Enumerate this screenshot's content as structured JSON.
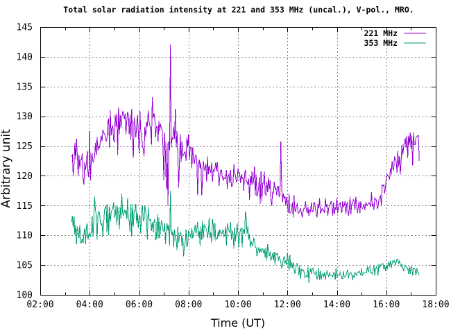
{
  "chart_data": {
    "type": "line",
    "title": "Total solar radiation intensity at 221 and 353 MHz (uncal.), V-pol., MRO.",
    "xlabel": "Time (UT)",
    "ylabel": "Arbitrary unit",
    "xlim_hours": [
      2,
      18
    ],
    "ylim": [
      100,
      145
    ],
    "x_major_ticks": [
      {
        "h": 2,
        "label": "02:00"
      },
      {
        "h": 4,
        "label": "04:00"
      },
      {
        "h": 6,
        "label": "06:00"
      },
      {
        "h": 8,
        "label": "08:00"
      },
      {
        "h": 10,
        "label": "10:00"
      },
      {
        "h": 12,
        "label": "12:00"
      },
      {
        "h": 14,
        "label": "14:00"
      },
      {
        "h": 16,
        "label": "16:00"
      },
      {
        "h": 18,
        "label": "18:00"
      }
    ],
    "x_minor_ticks_hours": [
      3,
      5,
      7,
      9,
      11,
      13,
      15,
      17
    ],
    "y_major_ticks": [
      {
        "v": 100,
        "label": "100"
      },
      {
        "v": 105,
        "label": "105"
      },
      {
        "v": 110,
        "label": "110"
      },
      {
        "v": 115,
        "label": "115"
      },
      {
        "v": 120,
        "label": "120"
      },
      {
        "v": 125,
        "label": "125"
      },
      {
        "v": 130,
        "label": "130"
      },
      {
        "v": 135,
        "label": "135"
      },
      {
        "v": 140,
        "label": "140"
      },
      {
        "v": 145,
        "label": "145"
      }
    ],
    "grid": true,
    "grid_color": "#808080",
    "border_color": "#000000",
    "background_color": "#ffffff",
    "legend_position": "top-right-inside",
    "legend": [
      {
        "label": "221 MHz",
        "color": "#9400D3"
      },
      {
        "label": "353 MHz",
        "color": "#009E73"
      }
    ],
    "series": [
      {
        "name": "221 MHz",
        "color": "#9400D3",
        "start_min": 196,
        "step_min": 2,
        "values": [
          123.25,
          123.5,
          120.0,
          121.75,
          125.5,
          122.75,
          126.25,
          123.5,
          120.0,
          123.5,
          121.25,
          122.75,
          122.75,
          123.75,
          119.5,
          118.5,
          122.25,
          121.0,
          122.0,
          124.25,
          120.25,
          119.75,
          127.5,
          119.25,
          123.0,
          123.75,
          122.25,
          122.75,
          123.25,
          125.5,
          123.5,
          126.5,
          124.25,
          125.0,
          124.75,
          126.0,
          126.75,
          125.75,
          127.75,
          127.25,
          127.0,
          126.75,
          125.75,
          126.25,
          129.25,
          129.5,
          124.75,
          131.0,
          126.75,
          128.0,
          128.5,
          126.0,
          125.75,
          130.25,
          128.25,
          130.5,
          123.5,
          131.5,
          127.0,
          130.25,
          128.0,
          129.75,
          130.75,
          130.75,
          129.5,
          130.5,
          127.0,
          129.25,
          130.75,
          130.25,
          127.0,
          130.25,
          126.0,
          131.25,
          126.25,
          123.0,
          129.75,
          128.75,
          126.5,
          128.25,
          130.25,
          127.5,
          123.75,
          131.0,
          127.5,
          127.0,
          125.0,
          124.5,
          123.25,
          128.25,
          126.5,
          129.0,
          128.25,
          131.0,
          129.25,
          128.5,
          127.75,
          125.25,
          133.25,
          129.75,
          130.5,
          129.75,
          126.5,
          128.25,
          128.25,
          125.75,
          129.25,
          127.5,
          128.75,
          128.0,
          127.75,
          124.75,
          119.25,
          127.25,
          123.5,
          117.75,
          125.5,
          115.0,
          125.75,
          124.25,
          142.0,
          124.75,
          126.5,
          126.0,
          128.25,
          126.25,
          131.25,
          124.75,
          127.5,
          123.75,
          118.0,
          122.5,
          127.0,
          122.25,
          125.75,
          123.25,
          123.5,
          124.0,
          124.0,
          122.5,
          126.5,
          124.75,
          127.0,
          122.75,
          124.75,
          124.75,
          121.25,
          124.75,
          122.75,
          122.0,
          123.25,
          123.5,
          122.75,
          116.75,
          121.75,
          122.75,
          121.25,
          122.25,
          116.75,
          119.75,
          122.5,
          121.0,
          121.0,
          122.0,
          119.0,
          123.25,
          120.25,
          121.75,
          121.0,
          120.5,
          122.25,
          119.0,
          121.0,
          120.75,
          121.25,
          122.25,
          120.75,
          122.25,
          120.25,
          118.25,
          120.0,
          121.0,
          121.0,
          119.75,
          119.25,
          119.75,
          119.5,
          119.5,
          121.0,
          117.75,
          120.0,
          120.25,
          118.75,
          121.0,
          118.25,
          118.25,
          118.75,
          122.0,
          120.5,
          120.0,
          119.0,
          119.25,
          121.25,
          120.5,
          120.5,
          118.75,
          120.25,
          119.5,
          119.75,
          117.5,
          120.25,
          121.0,
          119.0,
          119.0,
          118.5,
          119.5,
          116.0,
          120.0,
          118.5,
          120.75,
          118.5,
          119.25,
          121.5,
          116.75,
          120.25,
          116.5,
          117.0,
          118.0,
          119.75,
          115.25,
          120.75,
          115.75,
          118.75,
          118.75,
          120.75,
          117.0,
          116.75,
          119.0,
          117.25,
          119.75,
          117.75,
          119.25,
          115.75,
          115.0,
          117.25,
          117.0,
          119.0,
          117.75,
          118.0,
          116.75,
          118.25,
          118.25,
          116.5,
          116.75,
          125.75,
          118.0,
          115.5,
          117.0,
          116.25,
          116.5,
          115.0,
          116.5,
          115.25,
          113.75,
          117.0,
          113.75,
          113.75,
          114.25,
          115.5,
          113.0,
          116.75,
          114.25,
          114.0,
          115.0,
          115.25,
          113.75,
          113.75,
          114.25,
          114.5,
          113.75,
          113.0,
          114.0,
          114.5,
          114.5,
          115.75,
          114.25,
          113.75,
          114.75,
          113.25,
          114.25,
          114.0,
          115.5,
          114.0,
          114.0,
          115.5,
          115.5,
          114.5,
          113.5,
          113.0,
          115.25,
          114.5,
          116.25,
          113.75,
          114.0,
          114.5,
          114.25,
          114.25,
          113.75,
          116.25,
          114.75,
          115.25,
          113.25,
          114.5,
          115.0,
          115.25,
          115.75,
          115.0,
          113.25,
          115.5,
          113.5,
          114.75,
          114.25,
          116.25,
          113.75,
          114.75,
          115.25,
          115.5,
          114.5,
          113.75,
          115.75,
          114.75,
          115.0,
          115.75,
          113.5,
          115.25,
          115.5,
          113.25,
          114.25,
          116.5,
          113.5,
          115.25,
          115.25,
          116.0,
          115.75,
          114.25,
          116.5,
          115.25,
          113.75,
          114.75,
          115.75,
          113.75,
          115.75,
          114.75,
          114.5,
          114.75,
          115.25,
          114.25,
          115.5,
          115.25,
          115.0,
          115.25,
          115.5,
          115.25,
          114.75,
          117.25,
          115.0,
          115.25,
          114.25,
          116.25,
          116.0,
          116.0,
          114.5,
          114.75,
          116.0,
          116.25,
          116.75,
          115.0,
          118.5,
          118.25,
          118.5,
          117.0,
          118.0,
          120.0,
          120.25,
          120.0,
          119.75,
          119.5,
          121.25,
          120.25,
          122.5,
          121.25,
          121.0,
          123.25,
          122.75,
          122.5,
          120.5,
          124.25,
          121.5,
          123.25,
          120.25,
          122.5,
          125.25,
          123.5,
          124.75,
          126.0,
          126.25,
          124.75,
          126.75,
          123.0,
          126.75,
          125.25,
          127.25,
          124.5,
          126.75,
          121.75,
          127.25,
          125.25,
          125.25,
          126.5,
          126.5,
          126.75,
          126.75,
          122.5
        ]
      },
      {
        "name": "353 MHz",
        "color": "#009E73",
        "start_min": 196,
        "step_min": 2,
        "values": [
          112.25,
          113.25,
          111.25,
          113.25,
          110.0,
          111.75,
          108.5,
          111.5,
          110.5,
          109.5,
          111.75,
          108.75,
          108.75,
          109.5,
          108.75,
          110.25,
          111.25,
          108.5,
          111.5,
          112.0,
          109.25,
          110.25,
          110.25,
          109.75,
          110.75,
          113.25,
          109.75,
          112.5,
          116.5,
          114.25,
          113.5,
          109.25,
          113.25,
          114.0,
          113.75,
          112.0,
          111.75,
          112.0,
          109.75,
          112.0,
          114.25,
          114.75,
          115.0,
          110.5,
          115.25,
          110.0,
          114.75,
          112.25,
          113.75,
          114.25,
          114.5,
          115.5,
          113.0,
          113.25,
          115.0,
          111.75,
          114.75,
          113.5,
          111.0,
          114.75,
          112.75,
          117.0,
          113.75,
          113.25,
          114.25,
          113.75,
          114.25,
          112.75,
          116.25,
          112.5,
          112.5,
          110.5,
          115.25,
          109.75,
          115.25,
          111.5,
          114.0,
          114.25,
          115.25,
          112.0,
          113.75,
          111.25,
          113.25,
          113.25,
          110.25,
          114.25,
          115.0,
          112.5,
          112.5,
          115.0,
          114.0,
          112.25,
          109.25,
          114.75,
          112.75,
          112.5,
          112.75,
          110.75,
          112.25,
          110.5,
          112.25,
          112.75,
          109.25,
          109.5,
          113.5,
          109.5,
          113.0,
          109.5,
          111.0,
          112.5,
          112.0,
          110.75,
          110.75,
          112.0,
          108.5,
          111.5,
          112.0,
          110.75,
          111.75,
          108.25,
          117.5,
          110.75,
          110.0,
          110.75,
          108.0,
          111.0,
          109.5,
          109.25,
          107.5,
          111.5,
          108.75,
          109.75,
          110.5,
          110.25,
          108.25,
          109.75,
          106.5,
          108.25,
          108.75,
          111.0,
          108.0,
          108.5,
          110.75,
          110.5,
          110.25,
          109.5,
          111.25,
          109.5,
          110.25,
          110.75,
          111.75,
          110.25,
          111.0,
          112.25,
          109.75,
          110.75,
          108.25,
          111.5,
          109.25,
          112.5,
          109.5,
          111.75,
          111.5,
          111.25,
          111.0,
          109.5,
          110.5,
          113.0,
          109.5,
          110.5,
          108.75,
          112.75,
          111.75,
          109.25,
          112.0,
          109.25,
          109.5,
          109.5,
          110.75,
          109.75,
          111.0,
          110.5,
          110.25,
          110.5,
          111.0,
          109.75,
          110.0,
          111.5,
          108.25,
          112.0,
          111.25,
          110.75,
          110.5,
          112.25,
          109.25,
          110.75,
          110.25,
          107.75,
          111.25,
          109.0,
          110.5,
          112.0,
          110.25,
          108.0,
          110.25,
          111.0,
          111.25,
          108.0,
          111.0,
          110.75,
          110.25,
          114.0,
          113.0,
          110.25,
          111.5,
          109.25,
          110.25,
          108.0,
          109.0,
          108.5,
          108.25,
          109.5,
          109.25,
          108.0,
          108.0,
          106.5,
          107.25,
          108.0,
          107.0,
          107.75,
          107.25,
          107.75,
          107.75,
          107.0,
          107.75,
          106.25,
          108.0,
          105.75,
          108.5,
          107.25,
          106.5,
          107.25,
          105.75,
          106.25,
          107.0,
          105.75,
          107.25,
          105.0,
          107.0,
          106.75,
          107.0,
          105.75,
          106.5,
          106.0,
          105.5,
          104.5,
          104.75,
          106.0,
          106.5,
          105.25,
          105.75,
          105.0,
          107.0,
          105.75,
          104.0,
          106.75,
          104.5,
          105.5,
          104.5,
          105.5,
          104.5,
          103.5,
          104.25,
          105.25,
          105.25,
          104.5,
          103.25,
          105.0,
          102.75,
          104.25,
          104.0,
          104.25,
          104.0,
          103.0,
          103.0,
          103.25,
          103.0,
          104.75,
          102.0,
          103.5,
          104.5,
          103.5,
          104.25,
          104.5,
          103.75,
          103.5,
          103.5,
          104.0,
          102.5,
          103.25,
          104.5,
          102.5,
          104.0,
          102.5,
          103.5,
          103.5,
          103.0,
          103.75,
          102.5,
          103.5,
          104.0,
          103.5,
          103.0,
          103.75,
          103.25,
          103.25,
          103.25,
          103.0,
          103.75,
          103.75,
          102.5,
          104.5,
          103.0,
          103.25,
          103.25,
          103.25,
          103.75,
          103.25,
          102.75,
          102.75,
          104.0,
          103.0,
          103.0,
          103.25,
          103.75,
          104.25,
          102.75,
          103.5,
          103.75,
          103.75,
          103.5,
          102.5,
          103.25,
          103.0,
          103.75,
          103.5,
          103.25,
          103.75,
          103.75,
          104.0,
          103.75,
          103.25,
          104.5,
          103.25,
          103.5,
          103.75,
          103.75,
          103.75,
          103.75,
          104.75,
          103.75,
          104.5,
          104.75,
          103.75,
          103.75,
          103.5,
          104.0,
          105.0,
          103.25,
          104.25,
          104.75,
          104.25,
          103.25,
          105.25,
          104.5,
          105.0,
          105.0,
          105.25,
          105.25,
          104.25,
          105.0,
          104.0,
          105.0,
          104.25,
          105.0,
          105.5,
          104.75,
          105.75,
          104.5,
          105.25,
          105.75,
          105.5,
          105.75,
          105.0,
          105.5,
          106.0,
          106.0,
          105.25,
          105.75,
          105.0,
          104.75,
          105.25,
          104.5,
          104.0,
          104.75,
          105.0,
          104.75,
          104.5,
          104.5,
          103.5,
          104.75,
          103.5,
          104.75,
          104.75,
          103.25,
          104.5,
          104.5,
          104.25,
          103.25,
          104.5,
          103.75,
          103.75,
          103.25
        ]
      }
    ]
  }
}
